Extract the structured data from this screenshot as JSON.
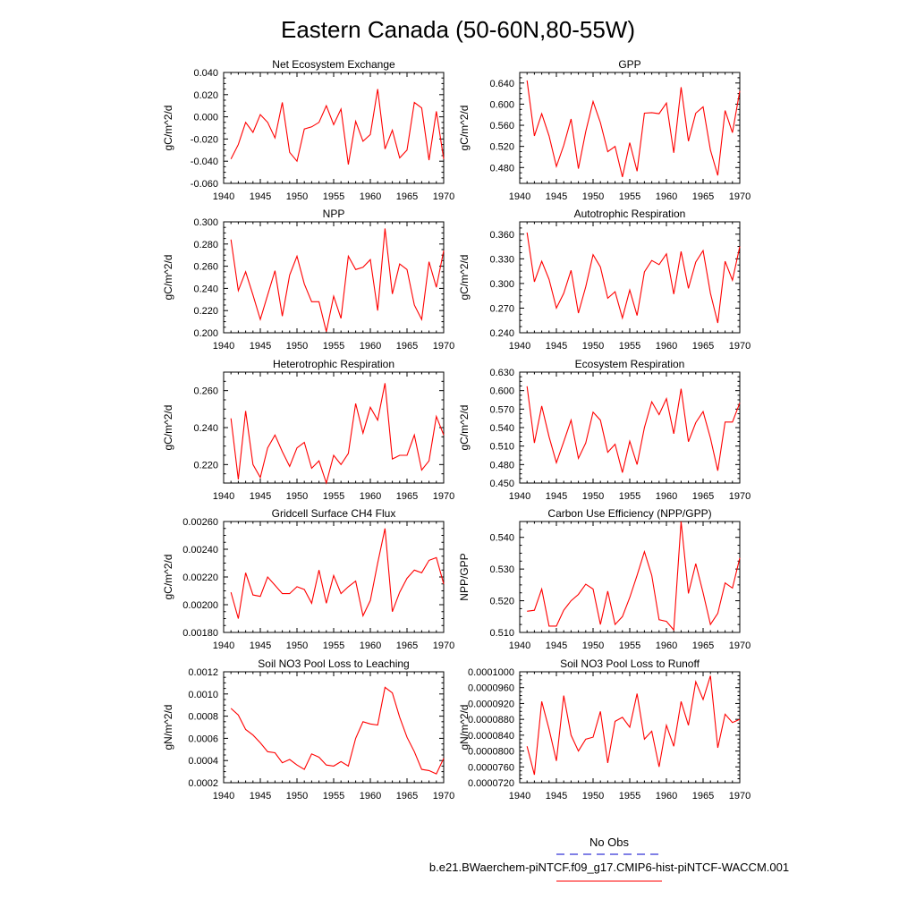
{
  "title": "Eastern Canada (50-60N,80-55W)",
  "colors": {
    "model": "#ff0000",
    "obs": "#0000cc",
    "axis": "#000000"
  },
  "legend": {
    "obs_label": "No Obs",
    "model_label": "b.e21.BWaerchem-piNTCF.f09_g17.CMIP6-hist-piNTCF-WACCM.001"
  },
  "chart_data": [
    {
      "type": "line",
      "title": "Net Ecosystem Exchange",
      "ylabel": "gC/m^2/d",
      "xlim": [
        1940,
        1970
      ],
      "ylim": [
        -0.06,
        0.04
      ],
      "yticks": [
        -0.06,
        -0.04,
        -0.02,
        0.0,
        0.02,
        0.04
      ],
      "ytick_labels": [
        "-0.060",
        "-0.040",
        "-0.020",
        "0.000",
        "0.020",
        "0.040"
      ],
      "xticks": [
        1940,
        1945,
        1950,
        1955,
        1960,
        1965,
        1970
      ],
      "xtick_labels": [
        "1940",
        "1945",
        "1950",
        "1955",
        "1960",
        "1965",
        "1970"
      ],
      "x_start": 1941,
      "values": [
        -0.038,
        -0.025,
        -0.005,
        -0.014,
        0.002,
        -0.005,
        -0.019,
        0.013,
        -0.032,
        -0.04,
        -0.011,
        -0.009,
        -0.005,
        0.01,
        -0.007,
        0.007,
        -0.043,
        -0.004,
        -0.022,
        -0.016,
        0.025,
        -0.029,
        -0.012,
        -0.037,
        -0.03,
        0.013,
        0.008,
        -0.039,
        0.005,
        -0.038
      ]
    },
    {
      "type": "line",
      "title": "GPP",
      "ylabel": "gC/m^2/d",
      "xlim": [
        1940,
        1970
      ],
      "ylim": [
        0.45,
        0.66
      ],
      "yticks": [
        0.48,
        0.52,
        0.56,
        0.6,
        0.64
      ],
      "ytick_labels": [
        "0.480",
        "0.520",
        "0.560",
        "0.600",
        "0.640"
      ],
      "xticks": [
        1940,
        1945,
        1950,
        1955,
        1960,
        1965,
        1970
      ],
      "xtick_labels": [
        "1940",
        "1945",
        "1950",
        "1955",
        "1960",
        "1965",
        "1970"
      ],
      "x_start": 1941,
      "values": [
        0.645,
        0.54,
        0.582,
        0.54,
        0.482,
        0.522,
        0.572,
        0.478,
        0.548,
        0.605,
        0.565,
        0.51,
        0.52,
        0.462,
        0.527,
        0.473,
        0.583,
        0.584,
        0.582,
        0.602,
        0.508,
        0.632,
        0.53,
        0.583,
        0.595,
        0.513,
        0.465,
        0.588,
        0.546,
        0.625
      ]
    },
    {
      "type": "line",
      "title": "NPP",
      "ylabel": "gC/m^2/d",
      "xlim": [
        1940,
        1970
      ],
      "ylim": [
        0.2,
        0.3
      ],
      "yticks": [
        0.2,
        0.22,
        0.24,
        0.26,
        0.28,
        0.3
      ],
      "ytick_labels": [
        "0.200",
        "0.220",
        "0.240",
        "0.260",
        "0.280",
        "0.300"
      ],
      "xticks": [
        1940,
        1945,
        1950,
        1955,
        1960,
        1965,
        1970
      ],
      "xtick_labels": [
        "1940",
        "1945",
        "1950",
        "1955",
        "1960",
        "1965",
        "1970"
      ],
      "x_start": 1941,
      "values": [
        0.284,
        0.238,
        0.255,
        0.234,
        0.212,
        0.234,
        0.256,
        0.215,
        0.252,
        0.269,
        0.244,
        0.228,
        0.228,
        0.201,
        0.233,
        0.213,
        0.269,
        0.257,
        0.259,
        0.266,
        0.22,
        0.294,
        0.235,
        0.262,
        0.257,
        0.225,
        0.212,
        0.264,
        0.241,
        0.274
      ]
    },
    {
      "type": "line",
      "title": "Autotrophic Respiration",
      "ylabel": "gC/m^2/d",
      "xlim": [
        1940,
        1970
      ],
      "ylim": [
        0.24,
        0.375
      ],
      "yticks": [
        0.24,
        0.27,
        0.3,
        0.33,
        0.36
      ],
      "ytick_labels": [
        "0.240",
        "0.270",
        "0.300",
        "0.330",
        "0.360"
      ],
      "xticks": [
        1940,
        1945,
        1950,
        1955,
        1960,
        1965,
        1970
      ],
      "xtick_labels": [
        "1940",
        "1945",
        "1950",
        "1955",
        "1960",
        "1965",
        "1970"
      ],
      "x_start": 1941,
      "values": [
        0.362,
        0.302,
        0.327,
        0.305,
        0.27,
        0.288,
        0.316,
        0.264,
        0.296,
        0.335,
        0.32,
        0.282,
        0.29,
        0.258,
        0.292,
        0.261,
        0.314,
        0.328,
        0.323,
        0.336,
        0.287,
        0.339,
        0.294,
        0.326,
        0.34,
        0.288,
        0.252,
        0.327,
        0.304,
        0.345
      ]
    },
    {
      "type": "line",
      "title": "Heterotrophic Respiration",
      "ylabel": "gC/m^2/d",
      "xlim": [
        1940,
        1970
      ],
      "ylim": [
        0.21,
        0.27
      ],
      "yticks": [
        0.22,
        0.24,
        0.26
      ],
      "ytick_labels": [
        "0.220",
        "0.240",
        "0.260"
      ],
      "xticks": [
        1940,
        1945,
        1950,
        1955,
        1960,
        1965,
        1970
      ],
      "xtick_labels": [
        "1940",
        "1945",
        "1950",
        "1955",
        "1960",
        "1965",
        "1970"
      ],
      "x_start": 1941,
      "values": [
        0.245,
        0.212,
        0.249,
        0.22,
        0.213,
        0.229,
        0.236,
        0.227,
        0.219,
        0.229,
        0.232,
        0.218,
        0.222,
        0.21,
        0.225,
        0.22,
        0.226,
        0.253,
        0.237,
        0.251,
        0.244,
        0.264,
        0.223,
        0.225,
        0.225,
        0.236,
        0.217,
        0.222,
        0.246,
        0.236
      ]
    },
    {
      "type": "line",
      "title": "Ecosystem Respiration",
      "ylabel": "gC/m^2/d",
      "xlim": [
        1940,
        1970
      ],
      "ylim": [
        0.45,
        0.63
      ],
      "yticks": [
        0.45,
        0.48,
        0.51,
        0.54,
        0.57,
        0.6,
        0.63
      ],
      "ytick_labels": [
        "0.450",
        "0.480",
        "0.510",
        "0.540",
        "0.570",
        "0.600",
        "0.630"
      ],
      "xticks": [
        1940,
        1945,
        1950,
        1955,
        1960,
        1965,
        1970
      ],
      "xtick_labels": [
        "1940",
        "1945",
        "1950",
        "1955",
        "1960",
        "1965",
        "1970"
      ],
      "x_start": 1941,
      "values": [
        0.607,
        0.515,
        0.575,
        0.525,
        0.483,
        0.517,
        0.552,
        0.49,
        0.515,
        0.565,
        0.552,
        0.5,
        0.513,
        0.467,
        0.518,
        0.48,
        0.54,
        0.582,
        0.561,
        0.587,
        0.53,
        0.603,
        0.517,
        0.548,
        0.566,
        0.523,
        0.47,
        0.549,
        0.549,
        0.58
      ]
    },
    {
      "type": "line",
      "title": "Gridcell Surface CH4 Flux",
      "ylabel": "gC/m^2/d",
      "xlim": [
        1940,
        1970
      ],
      "ylim": [
        0.0018,
        0.0026
      ],
      "yticks": [
        0.0018,
        0.002,
        0.0022,
        0.0024,
        0.0026
      ],
      "ytick_labels": [
        "0.00180",
        "0.00200",
        "0.00220",
        "0.00240",
        "0.00260"
      ],
      "xticks": [
        1940,
        1945,
        1950,
        1955,
        1960,
        1965,
        1970
      ],
      "xtick_labels": [
        "1940",
        "1945",
        "1950",
        "1955",
        "1960",
        "1965",
        "1970"
      ],
      "x_start": 1941,
      "values": [
        0.00209,
        0.0019,
        0.00223,
        0.00207,
        0.00206,
        0.0022,
        0.00214,
        0.00208,
        0.00208,
        0.00213,
        0.00211,
        0.00201,
        0.00225,
        0.00201,
        0.00221,
        0.00208,
        0.00213,
        0.00217,
        0.00192,
        0.00203,
        0.0023,
        0.00255,
        0.00195,
        0.00209,
        0.00219,
        0.00225,
        0.00223,
        0.00232,
        0.00234,
        0.00215
      ]
    },
    {
      "type": "line",
      "title": "Carbon Use Efficiency (NPP/GPP)",
      "ylabel": "NPP/GPP",
      "xlim": [
        1940,
        1970
      ],
      "ylim": [
        0.51,
        0.545
      ],
      "yticks": [
        0.51,
        0.52,
        0.53,
        0.54
      ],
      "ytick_labels": [
        "0.510",
        "0.520",
        "0.530",
        "0.540"
      ],
      "xticks": [
        1940,
        1945,
        1950,
        1955,
        1960,
        1965,
        1970
      ],
      "xtick_labels": [
        "1940",
        "1945",
        "1950",
        "1955",
        "1960",
        "1965",
        "1970"
      ],
      "x_start": 1941,
      "values": [
        0.5167,
        0.517,
        0.5237,
        0.512,
        0.512,
        0.517,
        0.52,
        0.522,
        0.5252,
        0.5237,
        0.5125,
        0.523,
        0.5125,
        0.515,
        0.521,
        0.528,
        0.5355,
        0.528,
        0.514,
        0.5135,
        0.5108,
        0.545,
        0.5223,
        0.5317,
        0.5225,
        0.5125,
        0.516,
        0.5256,
        0.524,
        0.5335
      ]
    },
    {
      "type": "line",
      "title": "Soil NO3 Pool Loss to Leaching",
      "ylabel": "gN/m^2/d",
      "xlim": [
        1940,
        1970
      ],
      "ylim": [
        0.0002,
        0.0012
      ],
      "yticks": [
        0.0002,
        0.0004,
        0.0006,
        0.0008,
        0.001,
        0.0012
      ],
      "ytick_labels": [
        "0.0002",
        "0.0004",
        "0.0006",
        "0.0008",
        "0.0010",
        "0.0012"
      ],
      "xticks": [
        1940,
        1945,
        1950,
        1955,
        1960,
        1965,
        1970
      ],
      "xtick_labels": [
        "1940",
        "1945",
        "1950",
        "1955",
        "1960",
        "1965",
        "1970"
      ],
      "x_start": 1941,
      "values": [
        0.00087,
        0.00081,
        0.00068,
        0.00063,
        0.00056,
        0.00048,
        0.00047,
        0.00038,
        0.00041,
        0.00036,
        0.00032,
        0.00046,
        0.00043,
        0.00036,
        0.00035,
        0.00039,
        0.00035,
        0.0006,
        0.00075,
        0.00073,
        0.00072,
        0.00106,
        0.00101,
        0.00079,
        0.00061,
        0.00048,
        0.00032,
        0.00031,
        0.00028,
        0.00042
      ]
    },
    {
      "type": "line",
      "title": "Soil NO3 Pool Loss to Runoff",
      "ylabel": "gN/m^2/d",
      "xlim": [
        1940,
        1970
      ],
      "ylim": [
        7.2e-05,
        0.0001
      ],
      "yticks": [
        7.2e-05,
        7.6e-05,
        8e-05,
        8.4e-05,
        8.8e-05,
        9.2e-05,
        9.6e-05,
        0.0001
      ],
      "ytick_labels": [
        "0.0000720",
        "0.0000760",
        "0.0000800",
        "0.0000840",
        "0.0000880",
        "0.0000920",
        "0.0000960",
        "0.0001000"
      ],
      "xticks": [
        1940,
        1945,
        1950,
        1955,
        1960,
        1965,
        1970
      ],
      "xtick_labels": [
        "1940",
        "1945",
        "1950",
        "1955",
        "1960",
        "1965",
        "1970"
      ],
      "x_start": 1941,
      "values": [
        8.12e-05,
        7.4e-05,
        9.25e-05,
        8.55e-05,
        7.75e-05,
        9.4e-05,
        8.4e-05,
        8e-05,
        8.3e-05,
        8.35e-05,
        9e-05,
        7.7e-05,
        8.75e-05,
        8.85e-05,
        8.6e-05,
        9.45e-05,
        8.3e-05,
        8.5e-05,
        7.6e-05,
        8.65e-05,
        8.12e-05,
        9.25e-05,
        8.65e-05,
        9.75e-05,
        9.3e-05,
        9.9e-05,
        8.08e-05,
        8.93e-05,
        8.72e-05,
        8.8e-05
      ]
    }
  ]
}
